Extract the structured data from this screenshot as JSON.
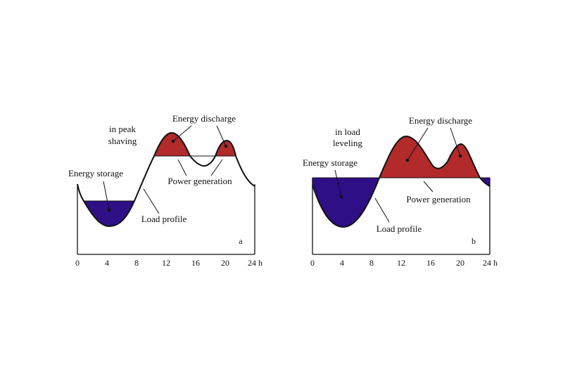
{
  "colors": {
    "storage_fill": "#2e0f86",
    "discharge_fill": "#b22a2a",
    "line": "#111111"
  },
  "panels": [
    {
      "letter": "a",
      "mode_text": [
        "in peak",
        "shaving"
      ],
      "ticks": [
        "0",
        "4",
        "8",
        "12",
        "16",
        "20",
        "24 h"
      ],
      "labels": {
        "energy_discharge": "Energy discharge",
        "energy_storage": "Energy storage",
        "power_generation": "Power generation",
        "load_profile": "Load profile"
      }
    },
    {
      "letter": "b",
      "mode_text": [
        "in load",
        "leveling"
      ],
      "ticks": [
        "0",
        "4",
        "8",
        "12",
        "16",
        "20",
        "24 h"
      ],
      "labels": {
        "energy_discharge": "Energy discharge",
        "energy_storage": "Energy storage",
        "power_generation": "Power generation",
        "load_profile": "Load profile"
      }
    }
  ]
}
